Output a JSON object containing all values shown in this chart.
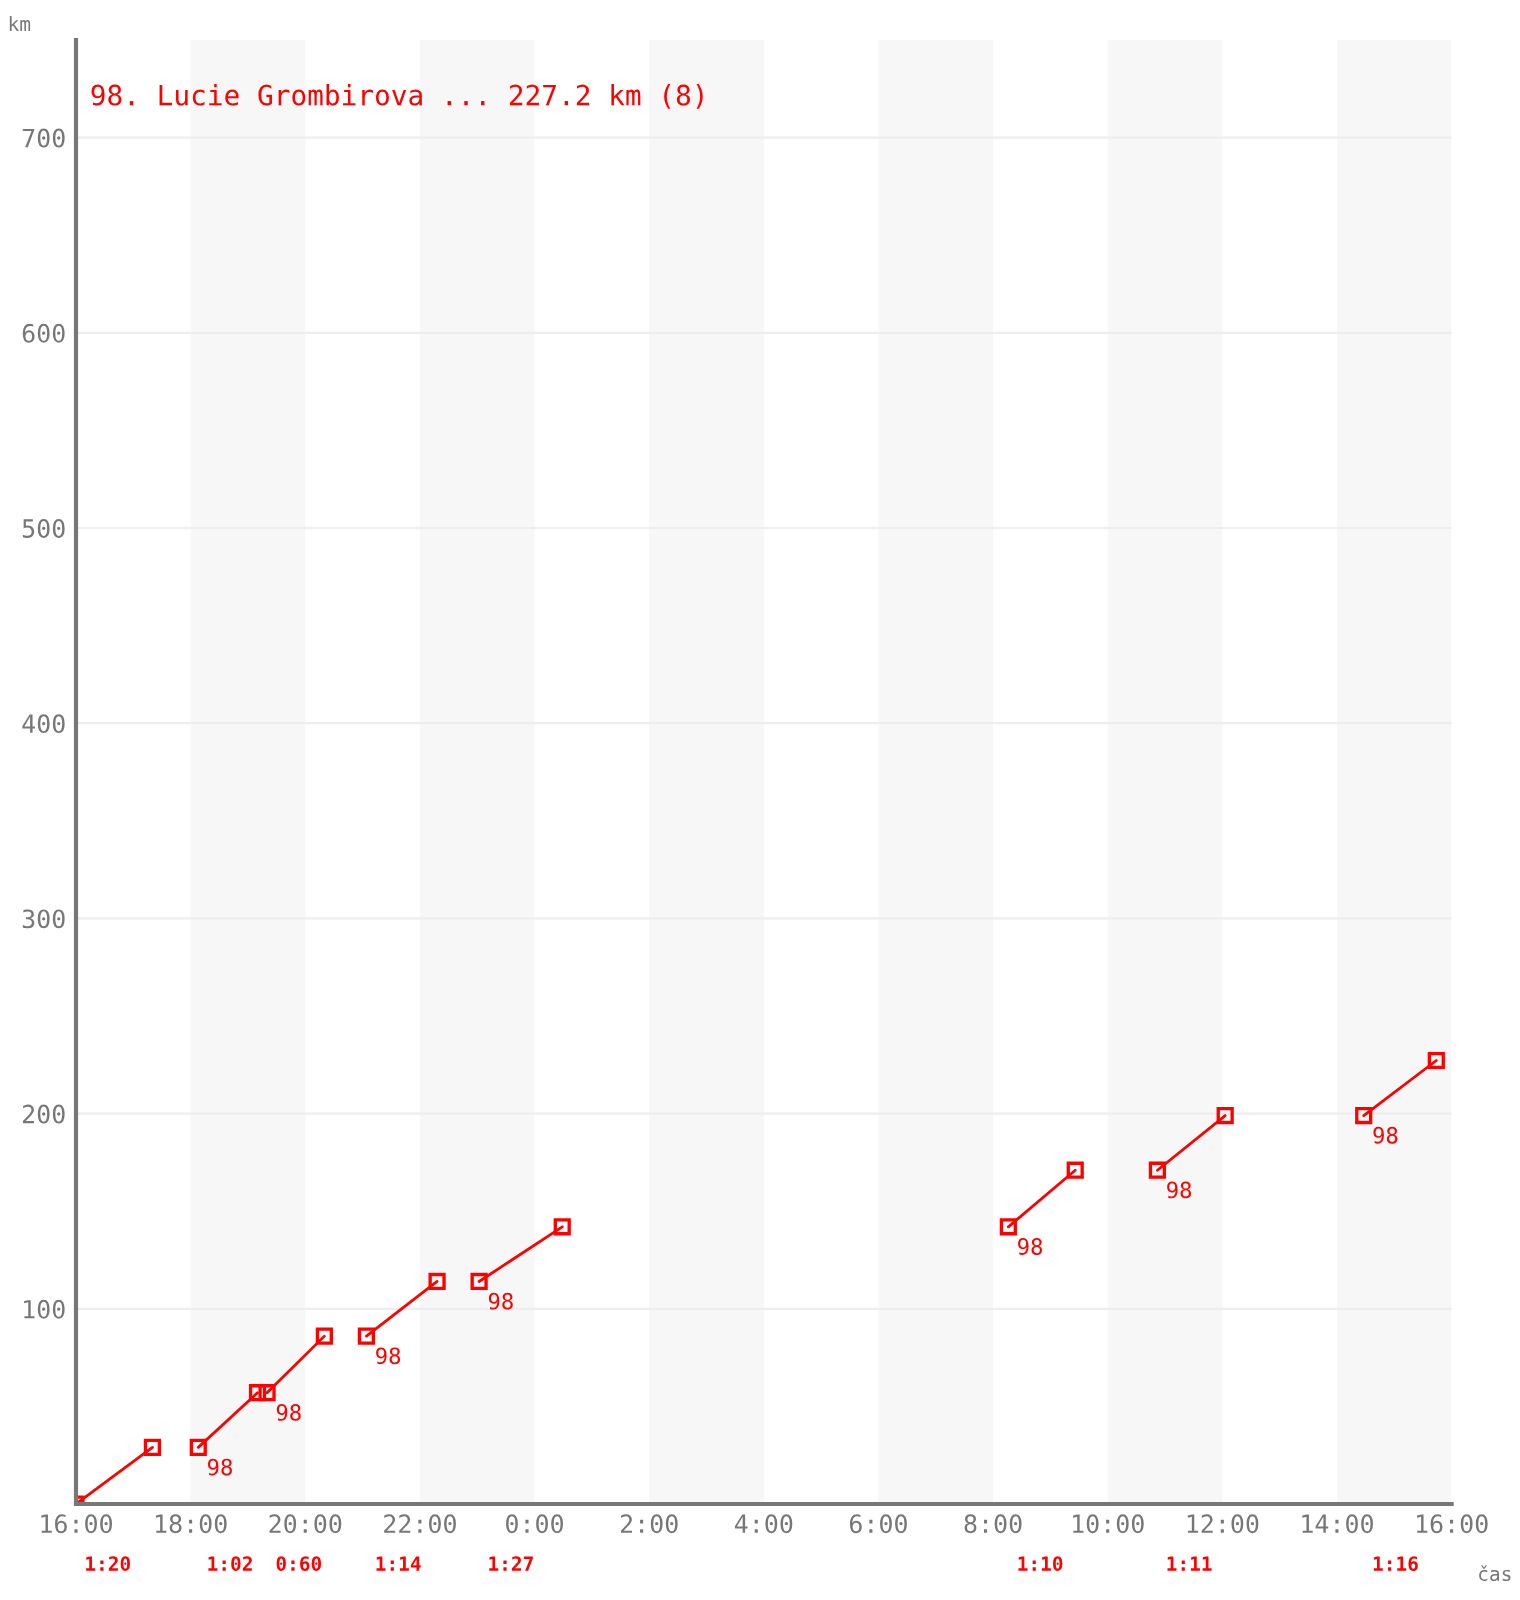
{
  "chart_data": {
    "type": "line",
    "title": "98. Lucie Grombirova ... 227.2 km (8)",
    "xlabel": "čas",
    "ylabel": "km",
    "series": [
      {
        "color": "#ff0000",
        "x": [
          "2000-01-01T16:00",
          "2000-01-01T17:20"
        ],
        "values": [
          0,
          29
        ]
      },
      {
        "color": "#ff0000",
        "x": [
          "2000-01-01T18:08",
          "2000-01-01T19:10"
        ],
        "values": [
          29,
          57
        ]
      },
      {
        "color": "#ff0000",
        "x": [
          "2000-01-01T19:20",
          "2000-01-01T20:20"
        ],
        "values": [
          57,
          86
        ]
      },
      {
        "color": "#ff0000",
        "x": [
          "2000-01-01T21:04",
          "2000-01-01T22:18"
        ],
        "values": [
          86,
          114
        ]
      },
      {
        "color": "#ff0000",
        "x": [
          "2000-01-01T23:02",
          "2000-01-02T00:29"
        ],
        "values": [
          114,
          142
        ]
      },
      {
        "color": "#ff0000",
        "x": [
          "2000-01-02T08:16",
          "2000-01-02T09:26"
        ],
        "values": [
          142,
          171
        ]
      },
      {
        "color": "#ff0000",
        "x": [
          "2000-01-02T10:52",
          "2000-01-02T12:03"
        ],
        "values": [
          171,
          199
        ]
      },
      {
        "color": "#ff0000",
        "x": [
          "2000-01-02T14:28",
          "2000-01-02T15:44"
        ],
        "values": [
          199,
          227.2
        ]
      }
    ],
    "annotations": [
      {
        "text": "98",
        "x": "2000-01-01T18:08",
        "y": 29
      },
      {
        "text": "98",
        "x": "2000-01-01T19:20",
        "y": 57
      },
      {
        "text": "98",
        "x": "2000-01-01T21:04",
        "y": 86
      },
      {
        "text": "98",
        "x": "2000-01-01T23:02",
        "y": 114
      },
      {
        "text": "98",
        "x": "2000-01-02T08:16",
        "y": 142
      },
      {
        "text": "98",
        "x": "2000-01-02T10:52",
        "y": 171
      },
      {
        "text": "98",
        "x": "2000-01-02T14:28",
        "y": 199
      },
      "1:20",
      "1:02",
      "0:60",
      "1:14",
      "1:27",
      "1:10",
      "1:11",
      "1:16"
    ],
    "bands": [
      {
        "axis": "x",
        "from": "2000-01-01T18:00",
        "to": "2000-01-01T20:00",
        "color": "#f7f7f7"
      },
      {
        "axis": "x",
        "from": "2000-01-01T22:00",
        "to": "2000-01-02T00:00",
        "color": "#f7f7f7"
      },
      {
        "axis": "x",
        "from": "2000-01-02T02:00",
        "to": "2000-01-02T04:00",
        "color": "#f7f7f7"
      },
      {
        "axis": "x",
        "from": "2000-01-02T06:00",
        "to": "2000-01-02T08:00",
        "color": "#f7f7f7"
      },
      {
        "axis": "x",
        "from": "2000-01-02T10:00",
        "to": "2000-01-02T12:00",
        "color": "#f7f7f7"
      },
      {
        "axis": "x",
        "from": "2000-01-02T14:00",
        "to": "2000-01-02T16:00",
        "color": "#f7f7f7"
      }
    ],
    "xlim": [
      "2000-01-01T16:00",
      "2000-01-02T16:00"
    ],
    "xticks": [
      {
        "value": "2000-01-01T16:00",
        "label": "16:00"
      },
      {
        "value": "2000-01-01T18:00",
        "label": "18:00"
      },
      {
        "value": "2000-01-01T20:00",
        "label": "20:00"
      },
      {
        "value": "2000-01-01T22:00",
        "label": "22:00"
      },
      {
        "value": "2000-01-02T00:00",
        "label": "0:00"
      },
      {
        "value": "2000-01-02T02:00",
        "label": "2:00"
      },
      {
        "value": "2000-01-02T04:00",
        "label": "4:00"
      },
      {
        "value": "2000-01-02T06:00",
        "label": "6:00"
      },
      {
        "value": "2000-01-02T08:00",
        "label": "8:00"
      },
      {
        "value": "2000-01-02T10:00",
        "label": "10:00"
      },
      {
        "value": "2000-01-02T12:00",
        "label": "12:00"
      },
      {
        "value": "2000-01-02T14:00",
        "label": "14:00"
      },
      {
        "value": "2000-01-02T16:00",
        "label": "16:00"
      }
    ],
    "ylim": [
      0,
      750
    ],
    "yticks": [
      100,
      200,
      300,
      400,
      500,
      600,
      700
    ],
    "grid": "y",
    "marker": "square",
    "line_style": "solid",
    "legend": false
  }
}
